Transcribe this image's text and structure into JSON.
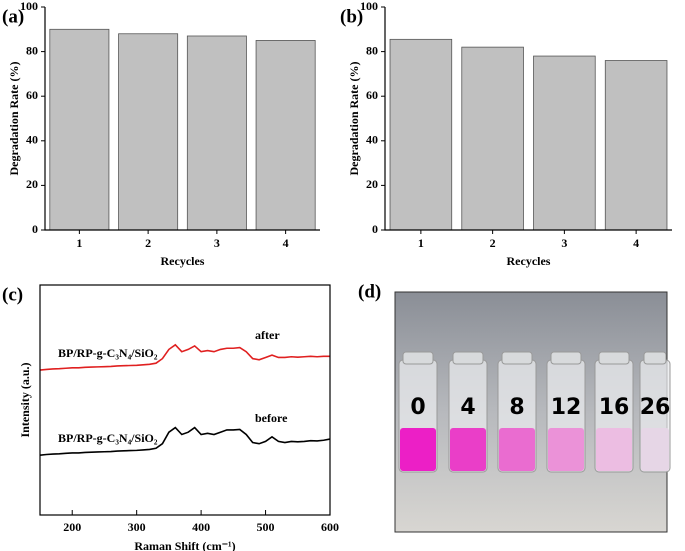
{
  "chart_data": [
    {
      "type": "bar",
      "panel_label": "(a)",
      "xlabel": "Recycles",
      "ylabel": "Degradation Rate (%)",
      "categories": [
        "1",
        "2",
        "3",
        "4"
      ],
      "values": [
        90,
        88,
        87,
        85
      ],
      "color": "#c0c0c0",
      "ylim": [
        0,
        100
      ],
      "yticks": [
        0,
        20,
        40,
        60,
        80,
        100
      ]
    },
    {
      "type": "bar",
      "panel_label": "(b)",
      "xlabel": "Recycles",
      "ylabel": "Degradation Rate (%)",
      "categories": [
        "1",
        "2",
        "3",
        "4"
      ],
      "values": [
        85.5,
        82,
        78,
        76
      ],
      "color": "#c0c0c0",
      "ylim": [
        0,
        100
      ],
      "yticks": [
        0,
        20,
        40,
        60,
        80,
        100
      ]
    },
    {
      "type": "line",
      "panel_label": "(c)",
      "xlabel": "Raman Shift (cm⁻¹)",
      "ylabel": "Intensity (a.u.)",
      "x": [
        150,
        160,
        170,
        180,
        190,
        200,
        210,
        220,
        230,
        240,
        250,
        260,
        270,
        280,
        290,
        300,
        310,
        320,
        330,
        340,
        350,
        360,
        370,
        380,
        390,
        400,
        410,
        420,
        430,
        440,
        450,
        460,
        470,
        480,
        490,
        500,
        510,
        520,
        530,
        540,
        550,
        560,
        570,
        580,
        590,
        600
      ],
      "series": [
        {
          "name": "after",
          "color": "#e02020",
          "values": [
            63,
            63.3,
            63.5,
            63.6,
            63.8,
            64,
            64,
            64.2,
            64.3,
            64.4,
            64.5,
            64.6,
            64.8,
            64.9,
            65,
            65.1,
            65.3,
            65.5,
            66,
            68,
            72,
            74,
            71,
            72,
            73.5,
            71,
            71.5,
            71,
            72,
            72.5,
            72.5,
            72.8,
            71,
            68,
            67.5,
            68.5,
            69.5,
            68.5,
            68.5,
            68.8,
            68.6,
            68.8,
            69,
            68.8,
            69,
            69
          ]
        },
        {
          "name": "before",
          "color": "#000000",
          "values": [
            26,
            26.3,
            26.5,
            26.6,
            26.8,
            27,
            27,
            27.2,
            27.3,
            27.4,
            27.5,
            27.6,
            27.8,
            27.9,
            28,
            28.1,
            28.3,
            28.5,
            29,
            31,
            36,
            38,
            35,
            36,
            38,
            35,
            35.5,
            35,
            36,
            37,
            37,
            37.2,
            35,
            31.5,
            31,
            32,
            34,
            32,
            31.5,
            32,
            31.8,
            32,
            32.3,
            32.2,
            32.5,
            33
          ]
        }
      ],
      "annotations": [
        "BP/RP-g-C₃N₄/SiO₂",
        "BP/RP-g-C₃N₄/SiO₂"
      ],
      "xlim": [
        150,
        600
      ],
      "xticks": [
        200,
        300,
        400,
        500,
        600
      ],
      "ylim": [
        0,
        100
      ]
    }
  ],
  "photo": {
    "panel_label": "(d)",
    "vial_labels": [
      "0",
      "4",
      "8",
      "12",
      "16",
      "26"
    ]
  }
}
